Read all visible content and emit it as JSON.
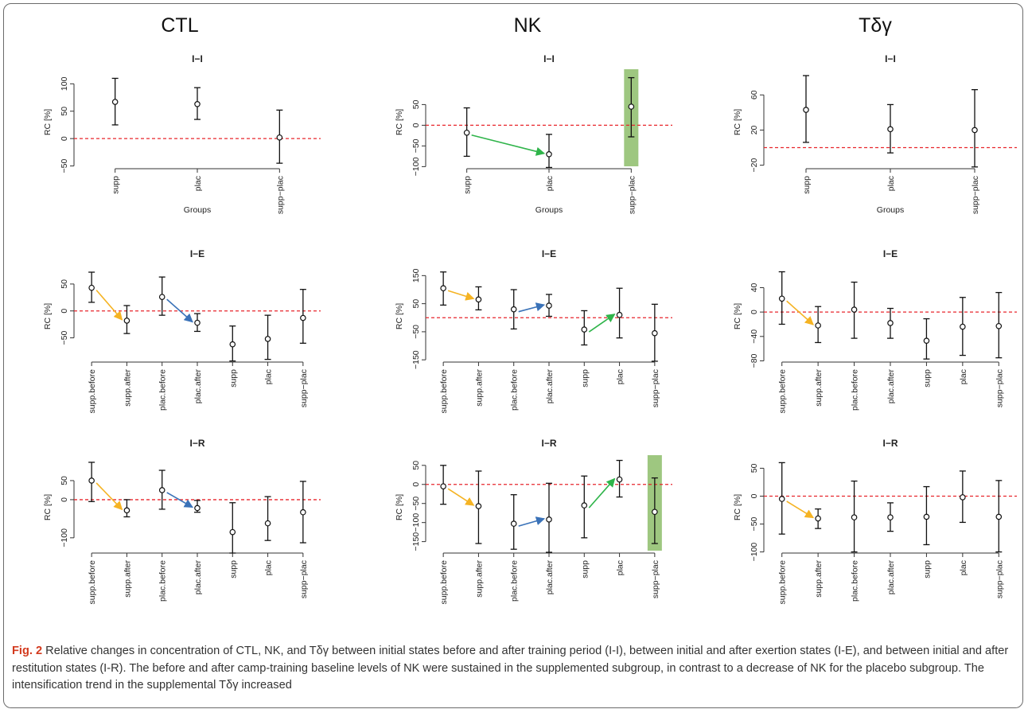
{
  "caption": {
    "label": "Fig. 2",
    "text": "Relative changes in concentration of CTL, NK, and Tδγ between initial states before and after training period (I-I), between initial and after exertion states (I-E), and between initial and after restitution states (I-R). The before and after camp-training baseline levels of NK were sustained in the supplemented subgroup, in contrast to a decrease of NK for the placebo subgroup. The intensification trend in the supplemental Tδγ increased"
  },
  "columns": [
    "CTL",
    "NK",
    "Tδγ"
  ],
  "colors": {
    "reference_line": "#e8262c",
    "arrow_yellow": "#f5b323",
    "arrow_blue": "#3a72b8",
    "arrow_green": "#2fb44a",
    "highlight": "#8dbd6a"
  },
  "chart_data": [
    {
      "type": "errorbar",
      "column": "CTL",
      "title": "I−I",
      "ylabel": "RC [%]",
      "xlabel": "Groups",
      "categories": [
        "supp",
        "plac",
        "supp−plac"
      ],
      "estimates": [
        67,
        63,
        2
      ],
      "lower": [
        25,
        35,
        -45
      ],
      "upper": [
        110,
        93,
        52
      ],
      "ylim": [
        -55,
        115
      ],
      "yticks": [
        -50,
        0,
        50,
        100
      ],
      "reference_line": 0,
      "arrows": [],
      "highlight": []
    },
    {
      "type": "errorbar",
      "column": "NK",
      "title": "I−I",
      "ylabel": "RC [%]",
      "xlabel": "Groups",
      "categories": [
        "supp",
        "plac",
        "supp−plac"
      ],
      "estimates": [
        -18,
        -70,
        45
      ],
      "lower": [
        -75,
        -102,
        -28
      ],
      "upper": [
        42,
        -22,
        115
      ],
      "ylim": [
        -105,
        120
      ],
      "yticks": [
        -100,
        -50,
        0,
        50
      ],
      "reference_line": 0,
      "arrows": [
        {
          "from": 0,
          "to": 1,
          "color": "green"
        }
      ],
      "highlight": [
        2
      ]
    },
    {
      "type": "errorbar",
      "column": "Tδγ",
      "title": "I−I",
      "ylabel": "RC [%]",
      "xlabel": "Groups",
      "categories": [
        "supp",
        "plac",
        "supp−plac"
      ],
      "estimates": [
        43,
        21,
        20
      ],
      "lower": [
        6,
        -6,
        -22
      ],
      "upper": [
        82,
        49,
        66
      ],
      "ylim": [
        -24,
        82
      ],
      "yticks": [
        -20,
        20,
        60
      ],
      "reference_line": 0,
      "arrows": [],
      "highlight": []
    },
    {
      "type": "errorbar",
      "column": "CTL",
      "title": "I−E",
      "ylabel": "RC [%]",
      "xlabel": "",
      "categories": [
        "supp.before",
        "supp.after",
        "plac.before",
        "plac.after",
        "supp",
        "plac",
        "supp−plac"
      ],
      "estimates": [
        43,
        -18,
        26,
        -22,
        -62,
        -52,
        -13
      ],
      "lower": [
        16,
        -42,
        -8,
        -38,
        -93,
        -90,
        -60
      ],
      "upper": [
        72,
        10,
        63,
        -5,
        -28,
        -8,
        40
      ],
      "ylim": [
        -95,
        75
      ],
      "yticks": [
        -50,
        0,
        50
      ],
      "reference_line": 0,
      "arrows": [
        {
          "from": 0,
          "to": 1,
          "color": "yellow"
        },
        {
          "from": 2,
          "to": 3,
          "color": "blue"
        }
      ],
      "highlight": []
    },
    {
      "type": "errorbar",
      "column": "NK",
      "title": "I−E",
      "ylabel": "RC [%]",
      "xlabel": "",
      "categories": [
        "supp.before",
        "supp.after",
        "plac.before",
        "plac.after",
        "supp",
        "plac",
        "supp−plac"
      ],
      "estimates": [
        105,
        65,
        30,
        43,
        -42,
        10,
        -55
      ],
      "lower": [
        45,
        28,
        -40,
        5,
        -97,
        -72,
        -155
      ],
      "upper": [
        163,
        110,
        100,
        83,
        25,
        105,
        48
      ],
      "ylim": [
        -158,
        168
      ],
      "yticks": [
        -150,
        -50,
        50,
        150
      ],
      "reference_line": 0,
      "arrows": [
        {
          "from": 0,
          "to": 1,
          "color": "yellow"
        },
        {
          "from": 2,
          "to": 3,
          "color": "blue"
        },
        {
          "from": 4,
          "to": 5,
          "color": "green"
        }
      ],
      "highlight": []
    },
    {
      "type": "errorbar",
      "column": "Tδγ",
      "title": "I−E",
      "ylabel": "RC [%]",
      "xlabel": "",
      "categories": [
        "supp.before",
        "supp.after",
        "plac.before",
        "plac.after",
        "supp",
        "plac",
        "supp−plac"
      ],
      "estimates": [
        22,
        -22,
        4,
        -18,
        -47,
        -24,
        -23
      ],
      "lower": [
        -20,
        -50,
        -43,
        -43,
        -77,
        -71,
        -75
      ],
      "upper": [
        66,
        9,
        49,
        6,
        -11,
        24,
        32
      ],
      "ylim": [
        -82,
        68
      ],
      "yticks": [
        -80,
        -40,
        0,
        40
      ],
      "reference_line": 0,
      "arrows": [
        {
          "from": 0,
          "to": 1,
          "color": "yellow"
        }
      ],
      "highlight": []
    },
    {
      "type": "errorbar",
      "column": "CTL",
      "title": "I−R",
      "ylabel": "RC [%]",
      "xlabel": "",
      "categories": [
        "supp.before",
        "supp.after",
        "plac.before",
        "plac.after",
        "supp",
        "plac",
        "supp−plac"
      ],
      "estimates": [
        50,
        -28,
        25,
        -22,
        -85,
        -62,
        -33
      ],
      "lower": [
        -5,
        -45,
        -25,
        -33,
        -140,
        -107,
        -113
      ],
      "upper": [
        98,
        0,
        77,
        -2,
        -8,
        8,
        48
      ],
      "ylim": [
        -140,
        100
      ],
      "yticks": [
        -100,
        0,
        50
      ],
      "reference_line": 0,
      "arrows": [
        {
          "from": 0,
          "to": 1,
          "color": "yellow"
        },
        {
          "from": 2,
          "to": 3,
          "color": "blue"
        }
      ],
      "highlight": []
    },
    {
      "type": "errorbar",
      "column": "NK",
      "title": "I−R",
      "ylabel": "RC [%]",
      "xlabel": "",
      "categories": [
        "supp.before",
        "supp.after",
        "plac.before",
        "plac.after",
        "supp",
        "plac",
        "supp−plac"
      ],
      "estimates": [
        -5,
        -57,
        -103,
        -92,
        -55,
        13,
        -72
      ],
      "lower": [
        -52,
        -155,
        -170,
        -178,
        -140,
        -33,
        -155
      ],
      "upper": [
        50,
        35,
        -27,
        3,
        22,
        63,
        17
      ],
      "ylim": [
        -180,
        60
      ],
      "yticks": [
        -150,
        -100,
        -50,
        0,
        50
      ],
      "reference_line": 0,
      "arrows": [
        {
          "from": 0,
          "to": 1,
          "color": "yellow"
        },
        {
          "from": 2,
          "to": 3,
          "color": "blue"
        },
        {
          "from": 4,
          "to": 5,
          "color": "green"
        }
      ],
      "highlight": [
        6
      ]
    },
    {
      "type": "errorbar",
      "column": "Tδγ",
      "title": "I−R",
      "ylabel": "RC [%]",
      "xlabel": "",
      "categories": [
        "supp.before",
        "supp.after",
        "plac.before",
        "plac.after",
        "supp",
        "plac",
        "supp−plac"
      ],
      "estimates": [
        -5,
        -40,
        -38,
        -38,
        -37,
        -2,
        -37
      ],
      "lower": [
        -68,
        -58,
        -100,
        -63,
        -87,
        -47,
        -100
      ],
      "upper": [
        60,
        -23,
        27,
        -12,
        17,
        45,
        28
      ],
      "ylim": [
        -102,
        62
      ],
      "yticks": [
        -100,
        -50,
        0,
        50
      ],
      "reference_line": 0,
      "arrows": [
        {
          "from": 0,
          "to": 1,
          "color": "yellow"
        }
      ],
      "highlight": []
    }
  ]
}
